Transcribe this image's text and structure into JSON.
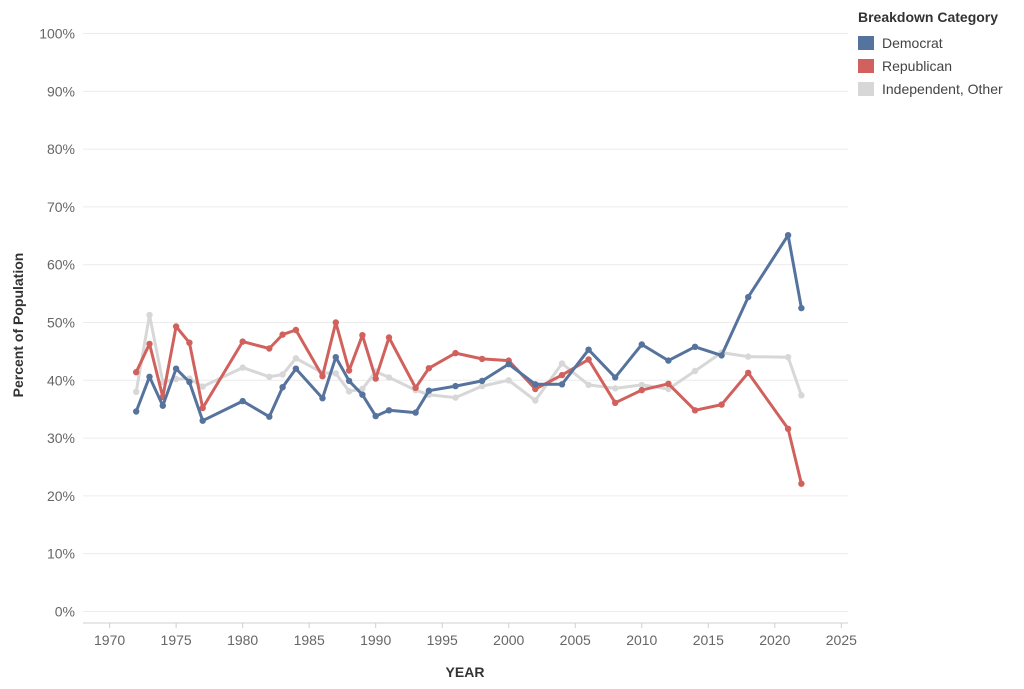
{
  "chart_data": {
    "type": "line",
    "xlabel": "YEAR",
    "ylabel": "Percent of Population",
    "xlim": [
      1968,
      2025.5
    ],
    "ylim": [
      -2,
      102
    ],
    "x_ticks": [
      1970,
      1975,
      1980,
      1985,
      1990,
      1995,
      2000,
      2005,
      2010,
      2015,
      2020,
      2025
    ],
    "x_tick_labels": [
      "1970",
      "1975",
      "1980",
      "1985",
      "1990",
      "1995",
      "2000",
      "2005",
      "2010",
      "2015",
      "2020",
      "2025"
    ],
    "y_ticks": [
      0,
      10,
      20,
      30,
      40,
      50,
      60,
      70,
      80,
      90,
      100
    ],
    "y_tick_labels": [
      "0%",
      "10%",
      "20%",
      "30%",
      "40%",
      "50%",
      "60%",
      "70%",
      "80%",
      "90%",
      "100%"
    ],
    "grid": true,
    "legend": {
      "title": "Breakdown Category",
      "placement": "top-right"
    },
    "series": [
      {
        "name": "Democrat",
        "color": "#56739e",
        "x": [
          1972,
          1973,
          1974,
          1975,
          1976,
          1977,
          1980,
          1982,
          1983,
          1984,
          1986,
          1987,
          1988,
          1989,
          1990,
          1991,
          1993,
          1994,
          1996,
          1998,
          2000,
          2002,
          2004,
          2006,
          2008,
          2010,
          2012,
          2014,
          2016,
          2018,
          2021,
          2022
        ],
        "y": [
          34.6,
          40.6,
          35.6,
          42.0,
          39.7,
          33.0,
          36.4,
          33.7,
          38.8,
          42.0,
          36.9,
          44.0,
          39.9,
          37.5,
          33.8,
          34.8,
          34.4,
          38.2,
          39.0,
          39.9,
          42.8,
          39.3,
          39.3,
          45.3,
          40.5,
          46.2,
          43.4,
          45.8,
          44.3,
          54.4,
          65.1,
          52.5
        ]
      },
      {
        "name": "Republican",
        "color": "#d1615d",
        "x": [
          1972,
          1973,
          1974,
          1975,
          1976,
          1977,
          1980,
          1982,
          1983,
          1984,
          1986,
          1987,
          1988,
          1989,
          1990,
          1991,
          1993,
          1994,
          1996,
          1998,
          2000,
          2002,
          2004,
          2006,
          2008,
          2010,
          2012,
          2014,
          2016,
          2018,
          2021,
          2022
        ],
        "y": [
          41.4,
          46.3,
          37.1,
          49.3,
          46.5,
          35.2,
          46.7,
          45.5,
          47.9,
          48.7,
          40.7,
          50.0,
          41.7,
          47.8,
          40.3,
          47.4,
          38.7,
          42.1,
          44.7,
          43.7,
          43.4,
          38.5,
          40.9,
          43.6,
          36.1,
          38.3,
          39.4,
          34.8,
          35.8,
          41.3,
          31.6,
          22.1
        ]
      },
      {
        "name": "Independent, Other",
        "color": "#d7d7d7",
        "x": [
          1972,
          1973,
          1974,
          1975,
          1976,
          1977,
          1980,
          1982,
          1983,
          1984,
          1986,
          1987,
          1988,
          1989,
          1990,
          1991,
          1993,
          1994,
          1996,
          1998,
          2000,
          2002,
          2004,
          2006,
          2008,
          2010,
          2012,
          2014,
          2016,
          2018,
          2021,
          2022
        ],
        "y": [
          38.0,
          51.3,
          39.7,
          40.2,
          40.3,
          38.9,
          42.2,
          40.6,
          41.0,
          43.8,
          41.3,
          41.2,
          38.1,
          38.5,
          41.5,
          40.5,
          38.3,
          37.5,
          37.0,
          39.0,
          40.0,
          36.5,
          42.9,
          39.2,
          38.6,
          39.2,
          38.5,
          41.6,
          44.8,
          44.1,
          44.0,
          37.4
        ]
      }
    ]
  }
}
